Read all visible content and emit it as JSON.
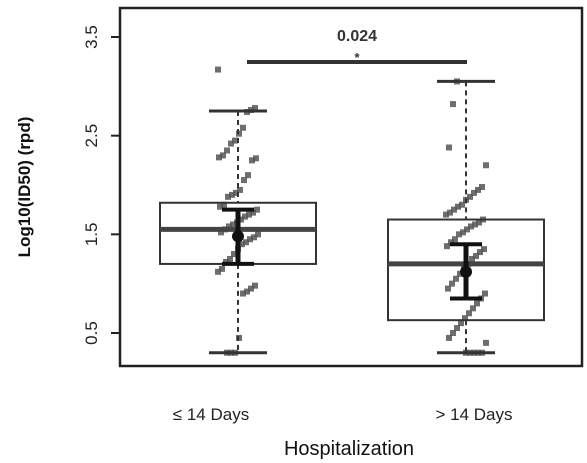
{
  "chart_data": {
    "type": "boxplot",
    "xlabel": "Hospitalization",
    "ylabel": "Log10(ID50) (rpd)",
    "ylim": [
      0.3,
      3.6
    ],
    "yticks": [
      0.5,
      1.5,
      2.5,
      3.5
    ],
    "ytick_labels": [
      "0.5",
      "1.5",
      "2.5",
      "3.5"
    ],
    "categories": [
      "≤ 14 Days",
      "> 14 Days"
    ],
    "groups": [
      {
        "label": "≤ 14 Days",
        "q1": 1.2,
        "median": 1.55,
        "q3": 1.82,
        "whisker_low": 0.3,
        "whisker_high": 2.75,
        "mean": 1.48,
        "ci": [
          1.2,
          1.75
        ],
        "points": [
          3.17,
          2.78,
          2.76,
          2.74,
          2.58,
          2.52,
          2.45,
          2.42,
          2.35,
          2.3,
          2.28,
          2.27,
          2.25,
          2.1,
          2.05,
          1.95,
          1.92,
          1.9,
          1.88,
          1.8,
          1.78,
          1.75,
          1.72,
          1.7,
          1.68,
          1.65,
          1.62,
          1.6,
          1.58,
          1.55,
          1.52,
          1.5,
          1.47,
          1.45,
          1.42,
          1.4,
          1.35,
          1.3,
          1.25,
          1.22,
          1.15,
          1.12,
          0.98,
          0.95,
          0.92,
          0.9,
          0.45,
          0.3,
          0.3,
          0.3
        ]
      },
      {
        "label": "> 14 Days",
        "q1": 0.63,
        "median": 1.2,
        "q3": 1.65,
        "whisker_low": 0.3,
        "whisker_high": 3.05,
        "mean": 1.12,
        "ci": [
          0.85,
          1.4
        ],
        "points": [
          3.05,
          2.82,
          2.38,
          2.2,
          1.98,
          1.95,
          1.92,
          1.88,
          1.85,
          1.8,
          1.78,
          1.75,
          1.72,
          1.7,
          1.65,
          1.62,
          1.6,
          1.58,
          1.55,
          1.52,
          1.5,
          1.45,
          1.42,
          1.38,
          1.35,
          1.32,
          1.28,
          1.25,
          1.2,
          1.15,
          1.1,
          1.05,
          1.0,
          0.95,
          0.9,
          0.85,
          0.8,
          0.75,
          0.7,
          0.65,
          0.6,
          0.55,
          0.5,
          0.45,
          0.4,
          0.3,
          0.3,
          0.3,
          0.3,
          0.3
        ]
      }
    ],
    "comparison": {
      "between": [
        "≤ 14 Days",
        "> 14 Days"
      ],
      "p_value": "0.024",
      "significance": "*"
    },
    "colors": {
      "box": "#333333",
      "point": "#555555",
      "mean": "#111111"
    }
  }
}
